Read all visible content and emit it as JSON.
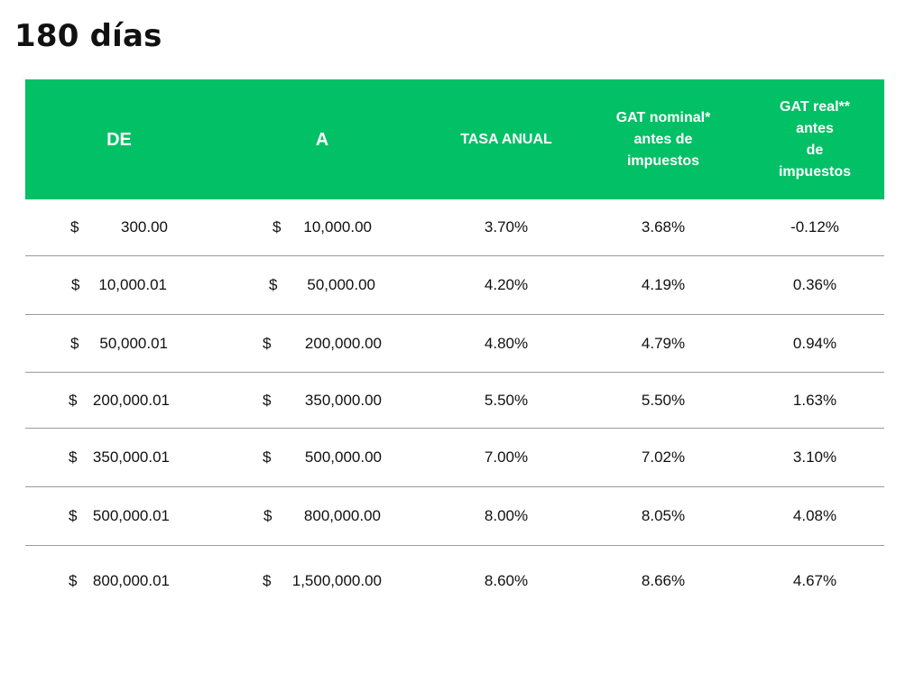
{
  "title": "180 días",
  "colors": {
    "header_bg": "#02c065",
    "header_text": "#ffffff",
    "row_divider": "#9a9a9a"
  },
  "table": {
    "headers": {
      "de": "DE",
      "a": "A",
      "tasa": "TASA ANUAL",
      "gat_nominal": "GAT nominal*\nantes de\nimpuestos",
      "gat_real": "GAT real**\nantes\nde\nimpuestos"
    },
    "rows": [
      {
        "de_symbol": "$",
        "de_amount": "300.00",
        "a_symbol": "$",
        "a_amount": "10,000.00",
        "tasa": "3.70%",
        "gat_nominal": "3.68%",
        "gat_real": "-0.12%"
      },
      {
        "de_symbol": "$",
        "de_amount": "10,000.01",
        "a_symbol": "$",
        "a_amount": "50,000.00",
        "tasa": "4.20%",
        "gat_nominal": "4.19%",
        "gat_real": "0.36%"
      },
      {
        "de_symbol": "$",
        "de_amount": "50,000.01",
        "a_symbol": "$",
        "a_amount": "200,000.00",
        "tasa": "4.80%",
        "gat_nominal": "4.79%",
        "gat_real": "0.94%"
      },
      {
        "de_symbol": "$",
        "de_amount": "200,000.01",
        "a_symbol": "$",
        "a_amount": "350,000.00",
        "tasa": "5.50%",
        "gat_nominal": "5.50%",
        "gat_real": "1.63%"
      },
      {
        "de_symbol": "$",
        "de_amount": "350,000.01",
        "a_symbol": "$",
        "a_amount": "500,000.00",
        "tasa": "7.00%",
        "gat_nominal": "7.02%",
        "gat_real": "3.10%"
      },
      {
        "de_symbol": "$",
        "de_amount": "500,000.01",
        "a_symbol": "$",
        "a_amount": "800,000.00",
        "tasa": "8.00%",
        "gat_nominal": "8.05%",
        "gat_real": "4.08%"
      },
      {
        "de_symbol": "$",
        "de_amount": "800,000.01",
        "a_symbol": "$",
        "a_amount": "1,500,000.00",
        "tasa": "8.60%",
        "gat_nominal": "8.66%",
        "gat_real": "4.67%"
      }
    ]
  }
}
